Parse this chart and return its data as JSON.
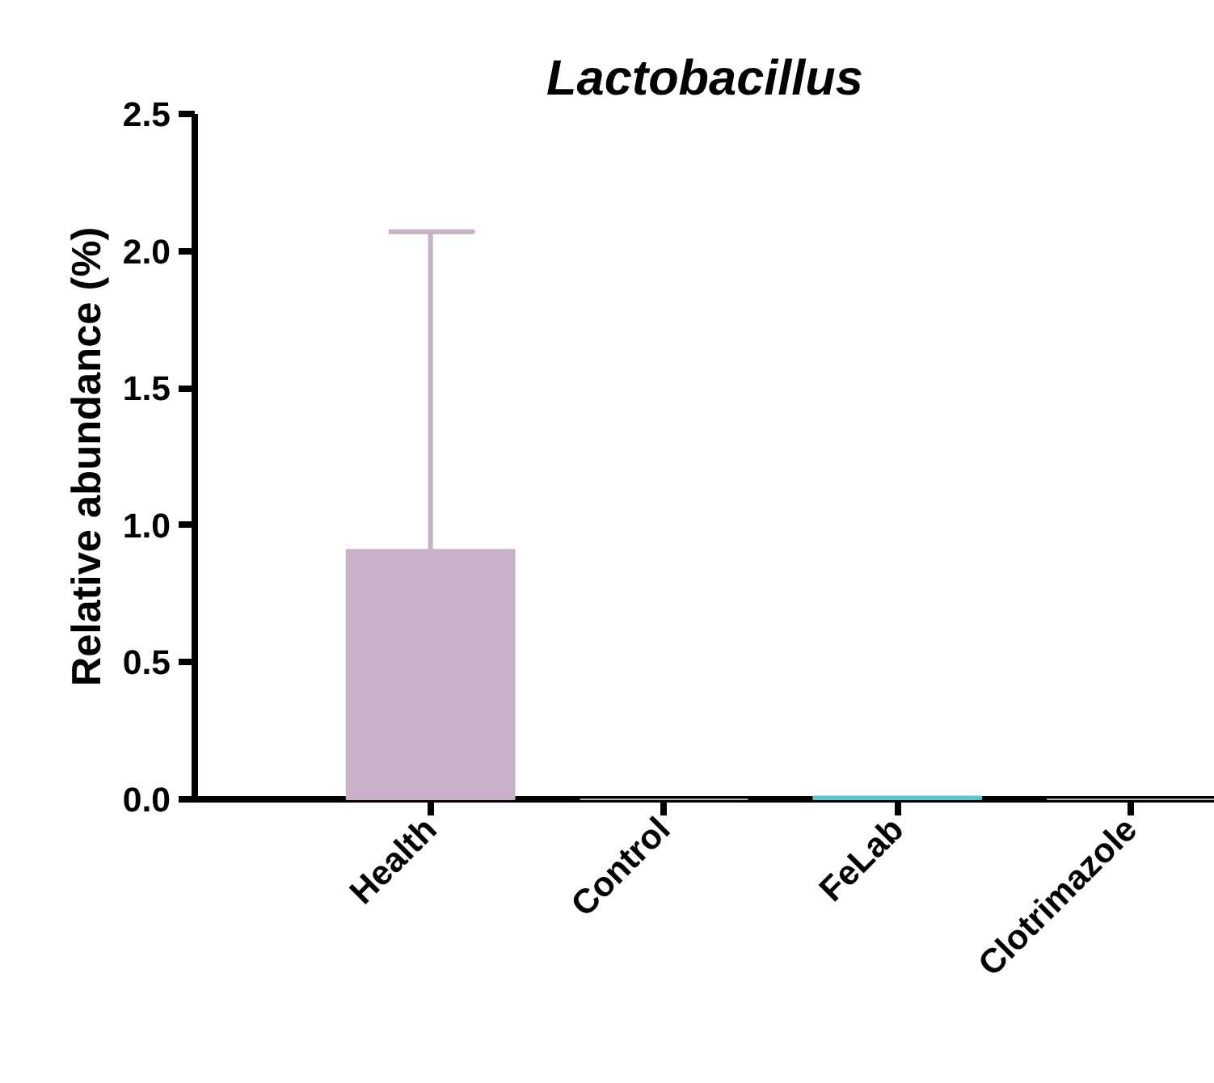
{
  "chart_data": {
    "type": "bar",
    "title": "Lactobacillus",
    "ylabel": "Relative abundance (%)",
    "categories": [
      "Health",
      "Control",
      "FeLab",
      "Clotrimazole"
    ],
    "values": [
      0.91,
      0,
      0.01,
      0
    ],
    "colors": [
      "#c9b2c9",
      "#b5b5b5",
      "#5bc5cf",
      "#b5b5b5"
    ],
    "errors": [
      [
        0.91,
        2.07
      ],
      null,
      null,
      null
    ],
    "ylim": [
      0,
      2.5
    ],
    "yticks": [
      {
        "value": 0,
        "label": "0.0"
      },
      {
        "value": 0.5,
        "label": "0.5"
      },
      {
        "value": 1,
        "label": "1.0"
      },
      {
        "value": 1.5,
        "label": "1.5"
      },
      {
        "value": 2,
        "label": "2.0"
      },
      {
        "value": 2.5,
        "label": "2.5"
      }
    ],
    "grid": false
  }
}
